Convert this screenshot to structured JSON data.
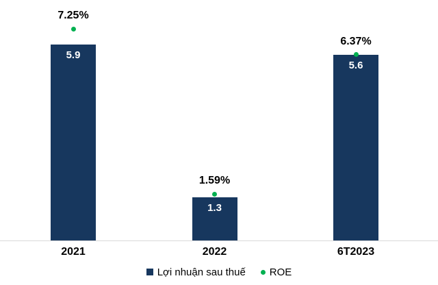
{
  "chart_data": {
    "type": "bar",
    "title": "",
    "categories": [
      "2021",
      "2022",
      "6T2023"
    ],
    "series": [
      {
        "name": "Lợi nhuận sau thuế",
        "type": "bar",
        "values": [
          5.9,
          1.3,
          5.6
        ],
        "labels": [
          "5.9",
          "1.3",
          "5.6"
        ],
        "color": "#17375e",
        "label_color": "#ffffff"
      },
      {
        "name": "ROE",
        "type": "point",
        "values": [
          7.25,
          1.59,
          6.37
        ],
        "labels": [
          "7.25%",
          "1.59%",
          "6.37%"
        ],
        "color": "#00b050",
        "label_color": "#000000"
      }
    ],
    "xlabel": "",
    "ylabel": "",
    "primary_ylim": [
      0,
      7.2
    ],
    "secondary_ylim": [
      0,
      8.2
    ],
    "grid": false,
    "legend_position": "bottom",
    "axis_line_color": "#d9d9d9",
    "background_color": "#ffffff"
  }
}
